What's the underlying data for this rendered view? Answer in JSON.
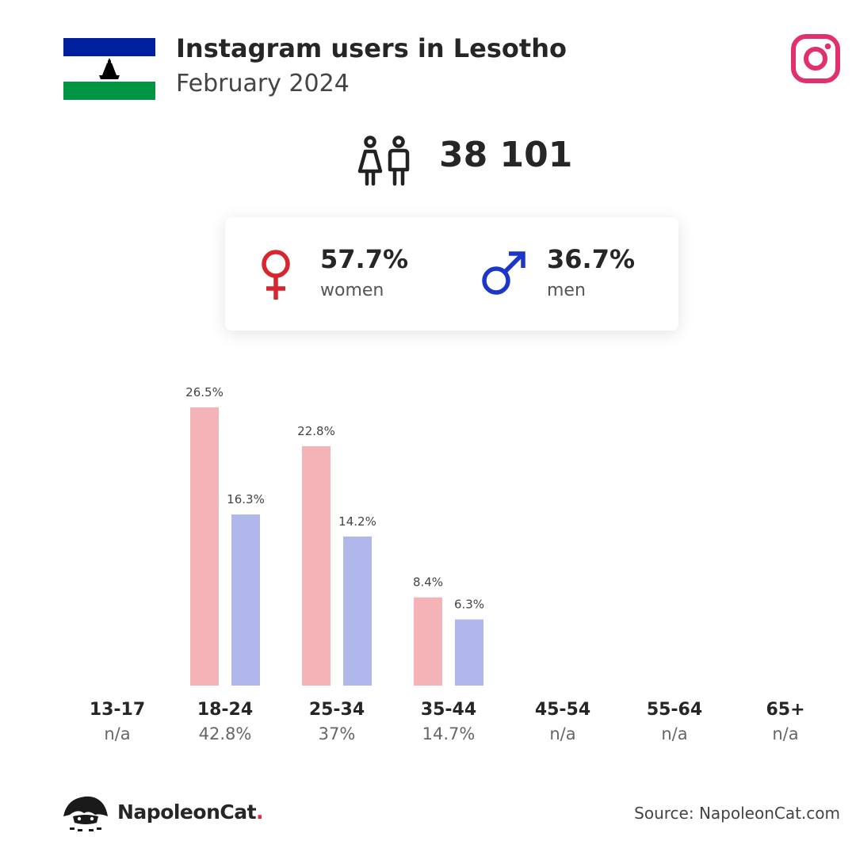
{
  "header": {
    "title": "Instagram users in Lesotho",
    "subtitle": "February 2024",
    "flag_colors": {
      "top": "#00209f",
      "middle": "#ffffff",
      "bottom": "#009543",
      "emblem": "#000000"
    },
    "platform_icon": "instagram-icon",
    "platform_color": "#e1306c"
  },
  "total": {
    "icon": "people-icon",
    "value": "38 101"
  },
  "gender": {
    "women": {
      "icon": "female-symbol-icon",
      "percent": "57.7%",
      "label": "women",
      "color": "#d7262d"
    },
    "men": {
      "icon": "male-symbol-icon",
      "percent": "36.7%",
      "label": "men",
      "color": "#1c36c9"
    }
  },
  "chart_data": {
    "type": "bar",
    "categories": [
      "13-17",
      "18-24",
      "25-34",
      "35-44",
      "45-54",
      "55-64",
      "65+"
    ],
    "category_totals": [
      "n/a",
      "42.8%",
      "37%",
      "14.7%",
      "n/a",
      "n/a",
      "n/a"
    ],
    "series": [
      {
        "values": [
          null,
          26.5,
          22.8,
          8.4,
          null,
          null,
          null
        ],
        "labels": [
          "",
          "26.5%",
          "22.8%",
          "8.4%",
          "",
          "",
          ""
        ],
        "color": "#f4b3b6"
      },
      {
        "values": [
          null,
          16.3,
          14.2,
          6.3,
          null,
          null,
          null
        ],
        "labels": [
          "",
          "16.3%",
          "14.2%",
          "6.3%",
          "",
          "",
          ""
        ],
        "color": "#b0b8eb"
      }
    ],
    "ylim": [
      0,
      26.5
    ],
    "grid": false
  },
  "footer": {
    "brand": "NapoleonCat",
    "brand_dot": ".",
    "source": "Source: NapoleonCat.com"
  }
}
